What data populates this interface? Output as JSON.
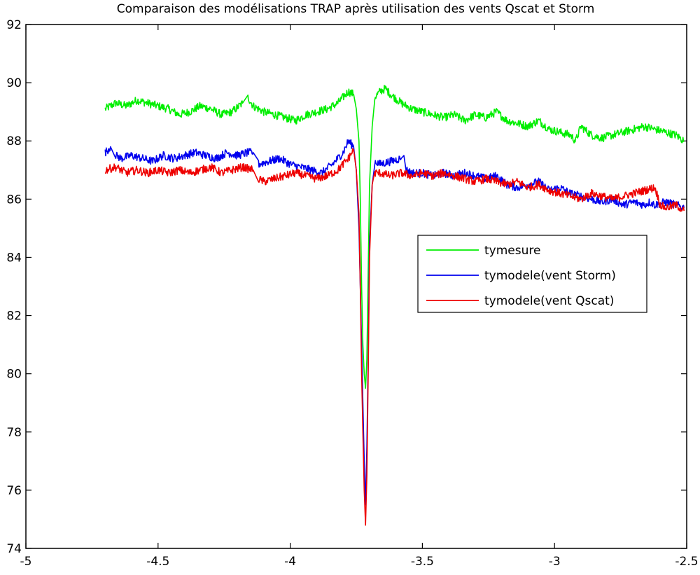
{
  "chart_data": {
    "type": "line",
    "title": "Comparaison des modélisations TRAP après utilisation des vents Qscat et Storm",
    "xlabel": "",
    "ylabel": "",
    "xlim": [
      -5,
      -2.5
    ],
    "ylim": [
      74,
      92
    ],
    "xticks": [
      -5,
      -4.5,
      -4,
      -3.5,
      -3,
      -2.5
    ],
    "xtick_labels": [
      "-5",
      "-4.5",
      "-4",
      "-3.5",
      "-3",
      "-2.5"
    ],
    "yticks": [
      74,
      76,
      78,
      80,
      82,
      84,
      86,
      88,
      90,
      92
    ],
    "ytick_labels": [
      "74",
      "76",
      "78",
      "80",
      "82",
      "84",
      "86",
      "88",
      "90",
      "92"
    ],
    "grid": false,
    "legend_position": "right",
    "series": [
      {
        "name": "tymesure",
        "color": "#00ee00",
        "x": [
          -4.7,
          -4.66,
          -4.62,
          -4.58,
          -4.54,
          -4.5,
          -4.46,
          -4.42,
          -4.38,
          -4.34,
          -4.3,
          -4.26,
          -4.22,
          -4.18,
          -4.16,
          -4.14,
          -4.1,
          -4.06,
          -4.02,
          -3.98,
          -3.94,
          -3.9,
          -3.86,
          -3.82,
          -3.78,
          -3.76,
          -3.75,
          -3.74,
          -3.735,
          -3.73,
          -3.725,
          -3.72,
          -3.715,
          -3.71,
          -3.705,
          -3.7,
          -3.69,
          -3.68,
          -3.66,
          -3.64,
          -3.62,
          -3.58,
          -3.54,
          -3.5,
          -3.46,
          -3.42,
          -3.38,
          -3.34,
          -3.3,
          -3.26,
          -3.22,
          -3.18,
          -3.14,
          -3.1,
          -3.06,
          -3.02,
          -2.98,
          -2.94,
          -2.92,
          -2.9,
          -2.86,
          -2.82,
          -2.78,
          -2.74,
          -2.7,
          -2.66,
          -2.62,
          -2.58,
          -2.54,
          -2.51
        ],
        "y": [
          89.1,
          89.3,
          89.2,
          89.4,
          89.3,
          89.2,
          89.1,
          88.9,
          89.0,
          89.2,
          89.1,
          88.9,
          89.0,
          89.3,
          89.5,
          89.2,
          89.0,
          88.9,
          88.8,
          88.7,
          88.9,
          89.0,
          89.1,
          89.3,
          89.7,
          89.6,
          89.1,
          88.0,
          86.0,
          83.0,
          81.0,
          80.0,
          79.5,
          80.5,
          83.5,
          86.5,
          88.5,
          89.5,
          89.7,
          89.8,
          89.6,
          89.3,
          89.1,
          89.0,
          88.9,
          88.8,
          88.9,
          88.7,
          88.9,
          88.8,
          89.0,
          88.7,
          88.6,
          88.5,
          88.7,
          88.4,
          88.3,
          88.2,
          88.0,
          88.5,
          88.2,
          88.1,
          88.2,
          88.3,
          88.4,
          88.5,
          88.4,
          88.3,
          88.2,
          88.0
        ]
      },
      {
        "name": "tymodele(vent Storm)",
        "color": "#0000ee",
        "x": [
          -4.7,
          -4.68,
          -4.66,
          -4.64,
          -4.6,
          -4.56,
          -4.52,
          -4.48,
          -4.44,
          -4.4,
          -4.36,
          -4.32,
          -4.28,
          -4.24,
          -4.2,
          -4.16,
          -4.14,
          -4.12,
          -4.08,
          -4.04,
          -4.0,
          -3.96,
          -3.92,
          -3.88,
          -3.84,
          -3.8,
          -3.78,
          -3.76,
          -3.75,
          -3.74,
          -3.735,
          -3.73,
          -3.725,
          -3.72,
          -3.715,
          -3.71,
          -3.705,
          -3.7,
          -3.69,
          -3.68,
          -3.66,
          -3.62,
          -3.58,
          -3.57,
          -3.56,
          -3.54,
          -3.5,
          -3.46,
          -3.42,
          -3.38,
          -3.34,
          -3.3,
          -3.26,
          -3.22,
          -3.18,
          -3.14,
          -3.1,
          -3.06,
          -3.02,
          -2.98,
          -2.94,
          -2.9,
          -2.86,
          -2.82,
          -2.78,
          -2.74,
          -2.7,
          -2.66,
          -2.64,
          -2.62,
          -2.58,
          -2.54,
          -2.51
        ],
        "y": [
          87.6,
          87.8,
          87.5,
          87.4,
          87.5,
          87.4,
          87.3,
          87.5,
          87.4,
          87.5,
          87.6,
          87.5,
          87.4,
          87.6,
          87.5,
          87.6,
          87.6,
          87.2,
          87.3,
          87.4,
          87.2,
          87.1,
          87.0,
          86.9,
          87.2,
          87.6,
          88.0,
          87.8,
          87.0,
          85.0,
          83.0,
          81.0,
          79.0,
          77.0,
          75.5,
          77.5,
          80.5,
          84.5,
          86.5,
          87.3,
          87.2,
          87.3,
          87.4,
          87.5,
          87.0,
          86.9,
          86.9,
          86.8,
          86.9,
          86.8,
          86.9,
          86.8,
          86.7,
          86.8,
          86.5,
          86.4,
          86.5,
          86.6,
          86.3,
          86.4,
          86.2,
          86.1,
          86.0,
          85.9,
          86.0,
          85.8,
          85.9,
          85.8,
          85.9,
          85.8,
          85.9,
          85.8,
          85.7
        ]
      },
      {
        "name": "tymodele(vent Qscat)",
        "color": "#ee0000",
        "x": [
          -4.7,
          -4.66,
          -4.62,
          -4.58,
          -4.54,
          -4.5,
          -4.46,
          -4.42,
          -4.38,
          -4.34,
          -4.3,
          -4.26,
          -4.22,
          -4.18,
          -4.14,
          -4.12,
          -4.1,
          -4.06,
          -4.02,
          -3.98,
          -3.94,
          -3.9,
          -3.86,
          -3.82,
          -3.78,
          -3.76,
          -3.75,
          -3.74,
          -3.735,
          -3.73,
          -3.725,
          -3.72,
          -3.715,
          -3.71,
          -3.705,
          -3.7,
          -3.69,
          -3.68,
          -3.66,
          -3.62,
          -3.58,
          -3.54,
          -3.5,
          -3.46,
          -3.42,
          -3.38,
          -3.34,
          -3.3,
          -3.26,
          -3.22,
          -3.18,
          -3.14,
          -3.1,
          -3.06,
          -3.02,
          -2.98,
          -2.94,
          -2.9,
          -2.86,
          -2.82,
          -2.78,
          -2.74,
          -2.7,
          -2.66,
          -2.62,
          -2.6,
          -2.58,
          -2.54,
          -2.51
        ],
        "y": [
          87.0,
          87.1,
          86.9,
          87.0,
          86.9,
          87.0,
          86.9,
          87.0,
          86.9,
          87.0,
          87.1,
          86.9,
          87.0,
          87.1,
          87.0,
          86.7,
          86.6,
          86.7,
          86.8,
          86.9,
          86.8,
          86.7,
          86.8,
          87.0,
          87.4,
          87.7,
          87.0,
          85.5,
          83.0,
          80.0,
          78.0,
          76.0,
          74.8,
          76.5,
          80.0,
          84.0,
          86.5,
          86.9,
          86.9,
          86.8,
          86.9,
          86.8,
          86.9,
          86.8,
          86.9,
          86.8,
          86.7,
          86.6,
          86.7,
          86.6,
          86.5,
          86.6,
          86.4,
          86.5,
          86.3,
          86.2,
          86.1,
          86.0,
          86.2,
          86.1,
          86.0,
          86.1,
          86.2,
          86.3,
          86.4,
          85.8,
          85.7,
          85.8,
          85.6
        ]
      }
    ]
  }
}
